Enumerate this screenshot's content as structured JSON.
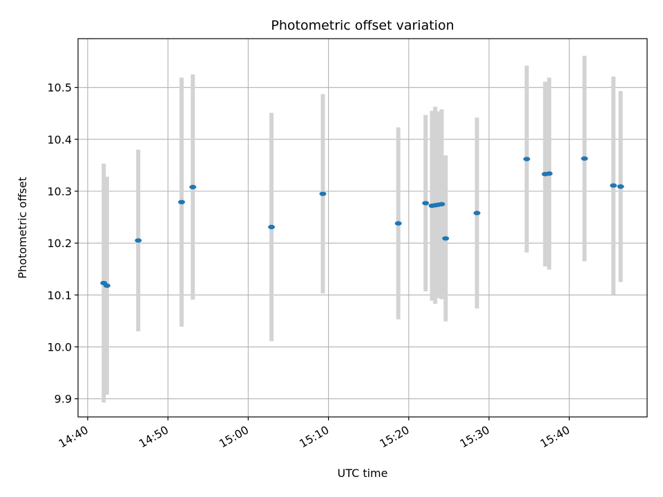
{
  "chart_data": {
    "type": "scatter",
    "title": "Photometric offset variation",
    "xlabel": "UTC time",
    "ylabel": "Photometric offset",
    "x_tick_labels": [
      "14:40",
      "14:50",
      "15:00",
      "15:10",
      "15:20",
      "15:30",
      "15:40"
    ],
    "x_ticks_minutes": [
      0,
      10,
      20,
      30,
      40,
      50,
      60
    ],
    "xlim_minutes": [
      -1.2,
      69.7
    ],
    "y_tick_labels": [
      "9.9",
      "10.0",
      "10.1",
      "10.2",
      "10.3",
      "10.4",
      "10.5"
    ],
    "y_ticks": [
      9.9,
      10.0,
      10.1,
      10.2,
      10.3,
      10.4,
      10.5
    ],
    "ylim": [
      9.865,
      10.594
    ],
    "grid": true,
    "colors": {
      "point": "#1f77b4",
      "errorbar": "#d3d3d3",
      "grid": "#b0b0b0"
    },
    "series": [
      {
        "x_minutes": [
          2.0,
          2.4,
          6.3,
          11.7,
          13.1,
          22.9,
          29.3,
          38.7,
          42.1,
          42.9,
          43.3,
          43.7,
          44.1,
          44.6,
          48.5,
          54.7,
          57.0,
          57.5,
          61.9,
          65.5,
          66.4
        ],
        "y": [
          10.123,
          10.118,
          10.205,
          10.279,
          10.308,
          10.231,
          10.295,
          10.238,
          10.277,
          10.272,
          10.273,
          10.274,
          10.275,
          10.209,
          10.258,
          10.362,
          10.333,
          10.334,
          10.363,
          10.311,
          10.309
        ],
        "yerr": [
          0.23,
          0.21,
          0.175,
          0.24,
          0.217,
          0.22,
          0.192,
          0.185,
          0.17,
          0.183,
          0.19,
          0.18,
          0.183,
          0.16,
          0.184,
          0.18,
          0.178,
          0.185,
          0.198,
          0.21,
          0.184
        ]
      }
    ]
  }
}
